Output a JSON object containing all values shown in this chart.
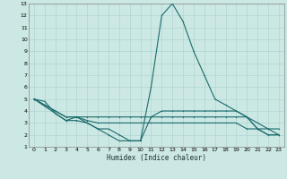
{
  "title": "",
  "xlabel": "Humidex (Indice chaleur)",
  "ylabel": "",
  "bg_color": "#cce8e4",
  "grid_color": "#b0d4d0",
  "line_color": "#1a6b6b",
  "xlim": [
    -0.5,
    23.5
  ],
  "ylim": [
    1,
    13
  ],
  "xticks": [
    0,
    1,
    2,
    3,
    4,
    5,
    6,
    7,
    8,
    9,
    10,
    11,
    12,
    13,
    14,
    15,
    16,
    17,
    18,
    19,
    20,
    21,
    22,
    23
  ],
  "yticks": [
    1,
    2,
    3,
    4,
    5,
    6,
    7,
    8,
    9,
    10,
    11,
    12,
    13
  ],
  "series": [
    {
      "x": [
        0,
        1,
        2,
        3,
        4,
        5,
        6,
        7,
        8,
        9,
        10,
        11,
        12,
        13,
        14,
        15,
        16,
        17,
        18,
        19,
        20,
        21,
        22,
        23
      ],
      "y": [
        5.0,
        4.8,
        3.8,
        3.2,
        3.2,
        3.0,
        2.5,
        2.0,
        1.5,
        1.5,
        1.5,
        6.0,
        12.0,
        13.0,
        11.5,
        9.0,
        7.0,
        5.0,
        4.5,
        4.0,
        3.5,
        2.5,
        2.5,
        2.0
      ]
    },
    {
      "x": [
        0,
        1,
        2,
        3,
        4,
        5,
        6,
        7,
        8,
        9,
        10,
        11,
        12,
        13,
        14,
        15,
        16,
        17,
        18,
        19,
        20,
        21,
        22,
        23
      ],
      "y": [
        5.0,
        4.5,
        4.0,
        3.5,
        3.5,
        3.5,
        3.5,
        3.5,
        3.5,
        3.5,
        3.5,
        3.5,
        4.0,
        4.0,
        4.0,
        4.0,
        4.0,
        4.0,
        4.0,
        4.0,
        3.5,
        3.0,
        2.5,
        2.5
      ]
    },
    {
      "x": [
        0,
        1,
        2,
        3,
        4,
        5,
        6,
        7,
        8,
        9,
        10,
        11,
        12,
        13,
        14,
        15,
        16,
        17,
        18,
        19,
        20,
        21,
        22,
        23
      ],
      "y": [
        5.0,
        4.5,
        4.0,
        3.5,
        3.5,
        3.2,
        3.0,
        3.0,
        3.0,
        3.0,
        3.0,
        3.0,
        3.0,
        3.0,
        3.0,
        3.0,
        3.0,
        3.0,
        3.0,
        3.0,
        2.5,
        2.5,
        2.0,
        2.0
      ]
    },
    {
      "x": [
        0,
        2,
        3,
        4,
        5,
        6,
        7,
        8,
        9,
        10,
        11,
        12,
        13,
        14,
        15,
        16,
        17,
        18,
        19,
        20,
        21,
        22,
        23
      ],
      "y": [
        5.0,
        3.8,
        3.2,
        3.5,
        3.0,
        2.5,
        2.5,
        2.0,
        1.5,
        1.5,
        3.5,
        3.5,
        3.5,
        3.5,
        3.5,
        3.5,
        3.5,
        3.5,
        3.5,
        3.5,
        2.5,
        2.0,
        2.0
      ]
    }
  ]
}
